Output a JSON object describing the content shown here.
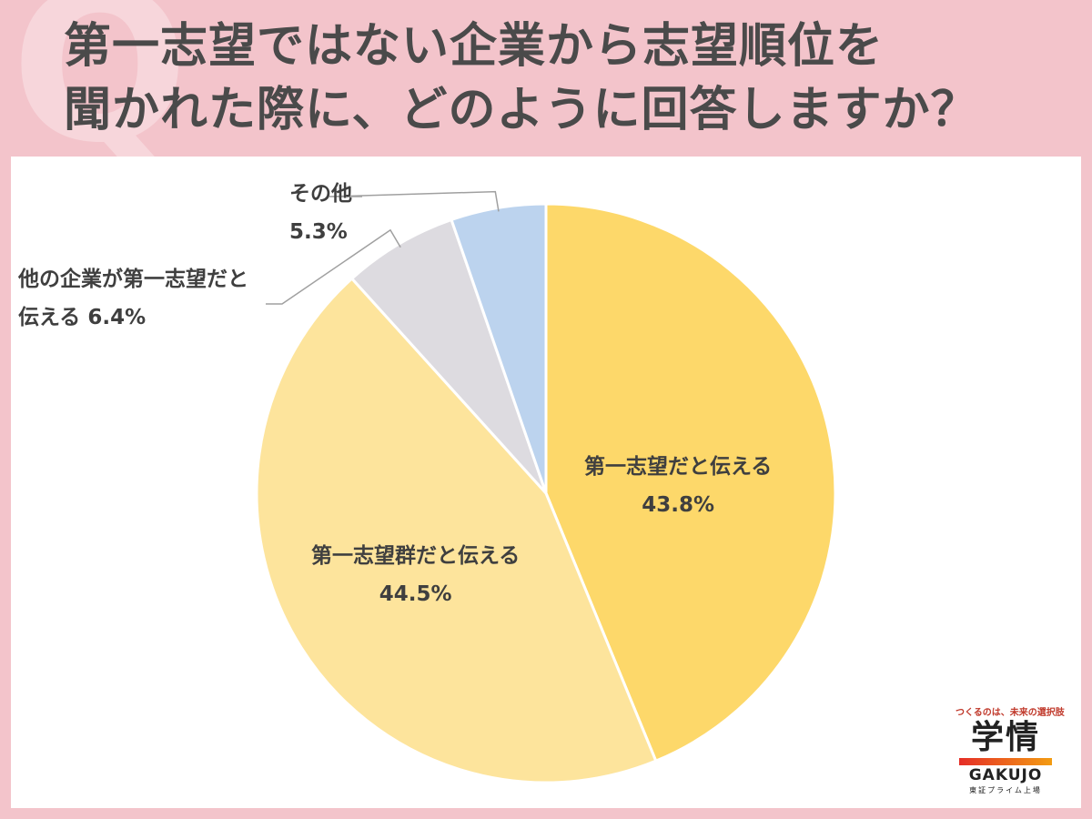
{
  "title": {
    "line1": "第一志望ではない企業から志望順位を",
    "line2": "聞かれた際に、どのように回答しますか？"
  },
  "chart_data": {
    "type": "pie",
    "slices": [
      {
        "label": "第一志望だと伝える",
        "value": 43.8,
        "value_label": "43.8%",
        "color": "#fdd86a"
      },
      {
        "label": "第一志望群だと伝える",
        "value": 44.5,
        "value_label": "44.5%",
        "color": "#fde49c"
      },
      {
        "label_line1": "他の企業が第一志望だと",
        "label_line2": "伝える",
        "value": 6.4,
        "value_label": "6.4%",
        "color": "#dddbe0"
      },
      {
        "label": "その他",
        "value": 5.3,
        "value_label": "5.3%",
        "color": "#bcd3ee"
      }
    ]
  },
  "logo": {
    "tagline": "つくるのは、未来の選択肢",
    "kanji": "学情",
    "latin": "GAKUJO",
    "sub": "東証プライム上場"
  }
}
